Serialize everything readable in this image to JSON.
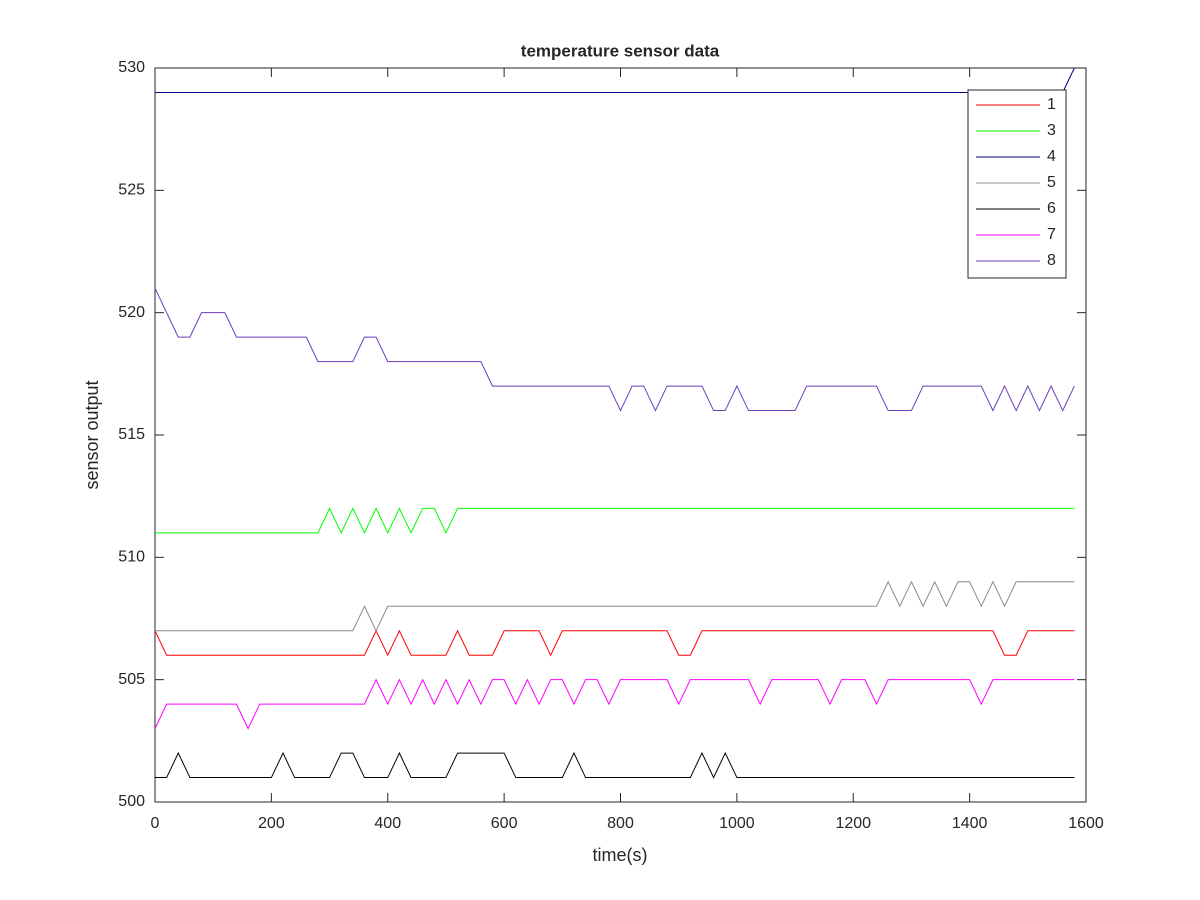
{
  "chart_data": {
    "type": "line",
    "title": "temperature sensor data",
    "x_label": "time(s)",
    "y_label": "sensor output",
    "x": [
      0,
      20,
      40,
      60,
      80,
      100,
      120,
      140,
      160,
      180,
      200,
      220,
      240,
      260,
      280,
      300,
      320,
      340,
      360,
      380,
      400,
      420,
      440,
      460,
      480,
      500,
      520,
      540,
      560,
      580,
      600,
      620,
      640,
      660,
      680,
      700,
      720,
      740,
      760,
      780,
      800,
      820,
      840,
      860,
      880,
      900,
      920,
      940,
      960,
      980,
      1000,
      1020,
      1040,
      1060,
      1080,
      1100,
      1120,
      1140,
      1160,
      1180,
      1200,
      1220,
      1240,
      1260,
      1280,
      1300,
      1320,
      1340,
      1360,
      1380,
      1400,
      1420,
      1440,
      1460,
      1480,
      1500,
      1520,
      1540,
      1560,
      1580
    ],
    "series": [
      {
        "name": "1",
        "color": "#ff0000",
        "values": [
          507,
          506,
          506,
          506,
          506,
          506,
          506,
          506,
          506,
          506,
          506,
          506,
          506,
          506,
          506,
          506,
          506,
          506,
          506,
          507,
          506,
          507,
          506,
          506,
          506,
          506,
          507,
          506,
          506,
          506,
          507,
          507,
          507,
          507,
          506,
          507,
          507,
          507,
          507,
          507,
          507,
          507,
          507,
          507,
          507,
          506,
          506,
          507,
          507,
          507,
          507,
          507,
          507,
          507,
          507,
          507,
          507,
          507,
          507,
          507,
          507,
          507,
          507,
          507,
          507,
          507,
          507,
          507,
          507,
          507,
          507,
          507,
          507,
          506,
          506,
          507,
          507,
          507,
          507,
          507
        ]
      },
      {
        "name": "3",
        "color": "#00ff00",
        "values": [
          511,
          511,
          511,
          511,
          511,
          511,
          511,
          511,
          511,
          511,
          511,
          511,
          511,
          511,
          511,
          512,
          511,
          512,
          511,
          512,
          511,
          512,
          511,
          512,
          512,
          511,
          512,
          512,
          512,
          512,
          512,
          512,
          512,
          512,
          512,
          512,
          512,
          512,
          512,
          512,
          512,
          512,
          512,
          512,
          512,
          512,
          512,
          512,
          512,
          512,
          512,
          512,
          512,
          512,
          512,
          512,
          512,
          512,
          512,
          512,
          512,
          512,
          512,
          512,
          512,
          512,
          512,
          512,
          512,
          512,
          512,
          512,
          512,
          512,
          512,
          512,
          512,
          512,
          512,
          512
        ]
      },
      {
        "name": "4",
        "color": "#00008b",
        "values": [
          529,
          529,
          529,
          529,
          529,
          529,
          529,
          529,
          529,
          529,
          529,
          529,
          529,
          529,
          529,
          529,
          529,
          529,
          529,
          529,
          529,
          529,
          529,
          529,
          529,
          529,
          529,
          529,
          529,
          529,
          529,
          529,
          529,
          529,
          529,
          529,
          529,
          529,
          529,
          529,
          529,
          529,
          529,
          529,
          529,
          529,
          529,
          529,
          529,
          529,
          529,
          529,
          529,
          529,
          529,
          529,
          529,
          529,
          529,
          529,
          529,
          529,
          529,
          529,
          529,
          529,
          529,
          529,
          529,
          529,
          529,
          529,
          529,
          529,
          529,
          529,
          529,
          529,
          529,
          530
        ]
      },
      {
        "name": "5",
        "color": "#8c8c8c",
        "values": [
          507,
          507,
          507,
          507,
          507,
          507,
          507,
          507,
          507,
          507,
          507,
          507,
          507,
          507,
          507,
          507,
          507,
          507,
          508,
          507,
          508,
          508,
          508,
          508,
          508,
          508,
          508,
          508,
          508,
          508,
          508,
          508,
          508,
          508,
          508,
          508,
          508,
          508,
          508,
          508,
          508,
          508,
          508,
          508,
          508,
          508,
          508,
          508,
          508,
          508,
          508,
          508,
          508,
          508,
          508,
          508,
          508,
          508,
          508,
          508,
          508,
          508,
          508,
          509,
          508,
          509,
          508,
          509,
          508,
          509,
          509,
          508,
          509,
          508,
          509,
          509,
          509,
          509,
          509,
          509
        ]
      },
      {
        "name": "6",
        "color": "#000000",
        "values": [
          501,
          501,
          502,
          501,
          501,
          501,
          501,
          501,
          501,
          501,
          501,
          502,
          501,
          501,
          501,
          501,
          502,
          502,
          501,
          501,
          501,
          502,
          501,
          501,
          501,
          501,
          502,
          502,
          502,
          502,
          502,
          501,
          501,
          501,
          501,
          501,
          502,
          501,
          501,
          501,
          501,
          501,
          501,
          501,
          501,
          501,
          501,
          502,
          501,
          502,
          501,
          501,
          501,
          501,
          501,
          501,
          501,
          501,
          501,
          501,
          501,
          501,
          501,
          501,
          501,
          501,
          501,
          501,
          501,
          501,
          501,
          501,
          501,
          501,
          501,
          501,
          501,
          501,
          501,
          501
        ]
      },
      {
        "name": "7",
        "color": "#ff00ff",
        "values": [
          503,
          504,
          504,
          504,
          504,
          504,
          504,
          504,
          503,
          504,
          504,
          504,
          504,
          504,
          504,
          504,
          504,
          504,
          504,
          505,
          504,
          505,
          504,
          505,
          504,
          505,
          504,
          505,
          504,
          505,
          505,
          504,
          505,
          504,
          505,
          505,
          504,
          505,
          505,
          504,
          505,
          505,
          505,
          505,
          505,
          504,
          505,
          505,
          505,
          505,
          505,
          505,
          504,
          505,
          505,
          505,
          505,
          505,
          504,
          505,
          505,
          505,
          504,
          505,
          505,
          505,
          505,
          505,
          505,
          505,
          505,
          504,
          505,
          505,
          505,
          505,
          505,
          505,
          505,
          505
        ]
      },
      {
        "name": "8",
        "color": "#6a3dbd",
        "values": [
          521,
          520,
          519,
          519,
          520,
          520,
          520,
          519,
          519,
          519,
          519,
          519,
          519,
          519,
          518,
          518,
          518,
          518,
          519,
          519,
          518,
          518,
          518,
          518,
          518,
          518,
          518,
          518,
          518,
          517,
          517,
          517,
          517,
          517,
          517,
          517,
          517,
          517,
          517,
          517,
          516,
          517,
          517,
          516,
          517,
          517,
          517,
          517,
          516,
          516,
          517,
          516,
          516,
          516,
          516,
          516,
          517,
          517,
          517,
          517,
          517,
          517,
          517,
          516,
          516,
          516,
          517,
          517,
          517,
          517,
          517,
          517,
          516,
          517,
          516,
          517,
          516,
          517,
          516,
          517
        ]
      }
    ],
    "xlim": [
      0,
      1600
    ],
    "xticks": [
      0,
      200,
      400,
      600,
      800,
      1000,
      1200,
      1400,
      1600
    ],
    "ylim": [
      500,
      530
    ],
    "yticks": [
      500,
      505,
      510,
      515,
      520,
      525,
      530
    ],
    "legend": "upper right"
  }
}
